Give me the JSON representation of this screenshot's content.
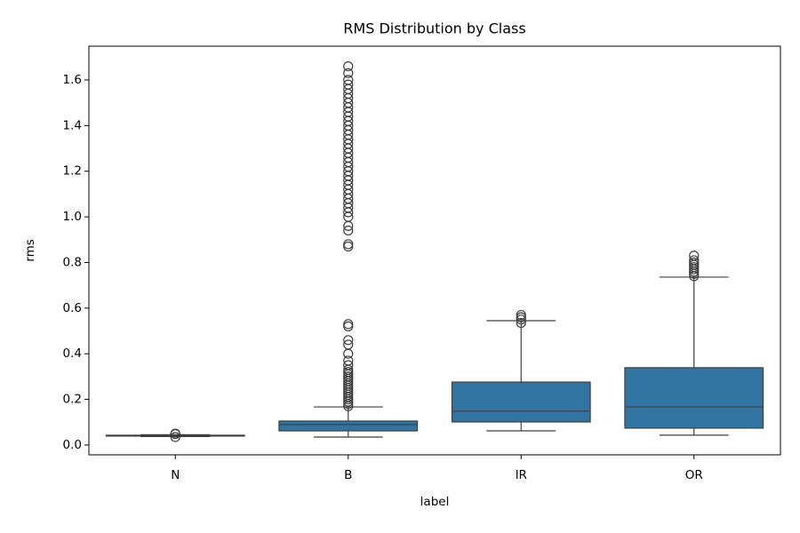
{
  "chart_data": {
    "type": "box",
    "title": "RMS Distribution by Class",
    "x_label": "label",
    "y_label": "rms",
    "categories": [
      "N",
      "B",
      "IR",
      "OR"
    ],
    "color": "#3274a1",
    "edge_color": "#3f3f3f",
    "grid": false,
    "ylim": [
      -0.043,
      1.748
    ],
    "yticks": [
      {
        "value": 0,
        "label": "0.0"
      },
      0.2,
      0.4,
      0.6,
      0.8,
      {
        "value": 1,
        "label": "1.0"
      },
      1.2,
      1.4,
      1.6
    ],
    "boxes": [
      {
        "whislo": 0.037,
        "q1": 0.039,
        "med": 0.041,
        "q3": 0.043,
        "whishi": 0.045,
        "fliers": [
          0.035,
          0.048,
          0.05
        ]
      },
      {
        "whislo": 0.035,
        "q1": 0.062,
        "med": 0.09,
        "q3": 0.105,
        "whishi": 0.167,
        "fliers": [
          0.17,
          0.18,
          0.19,
          0.2,
          0.21,
          0.22,
          0.23,
          0.24,
          0.25,
          0.26,
          0.27,
          0.28,
          0.29,
          0.3,
          0.31,
          0.32,
          0.33,
          0.35,
          0.37,
          0.4,
          0.44,
          0.46,
          0.52,
          0.53,
          0.87,
          0.88,
          0.94,
          0.96,
          1.0,
          1.02,
          1.04,
          1.06,
          1.08,
          1.1,
          1.12,
          1.14,
          1.16,
          1.18,
          1.2,
          1.22,
          1.24,
          1.26,
          1.28,
          1.3,
          1.32,
          1.34,
          1.36,
          1.38,
          1.4,
          1.42,
          1.44,
          1.46,
          1.48,
          1.5,
          1.52,
          1.54,
          1.56,
          1.58,
          1.6,
          1.63,
          1.66
        ]
      },
      {
        "whislo": 0.062,
        "q1": 0.101,
        "med": 0.148,
        "q3": 0.276,
        "whishi": 0.545,
        "fliers": [
          0.535,
          0.55,
          0.56,
          0.57
        ]
      },
      {
        "whislo": 0.043,
        "q1": 0.074,
        "med": 0.167,
        "q3": 0.339,
        "whishi": 0.736,
        "fliers": [
          0.74,
          0.75,
          0.76,
          0.77,
          0.78,
          0.79,
          0.8,
          0.81,
          0.83
        ]
      }
    ]
  }
}
